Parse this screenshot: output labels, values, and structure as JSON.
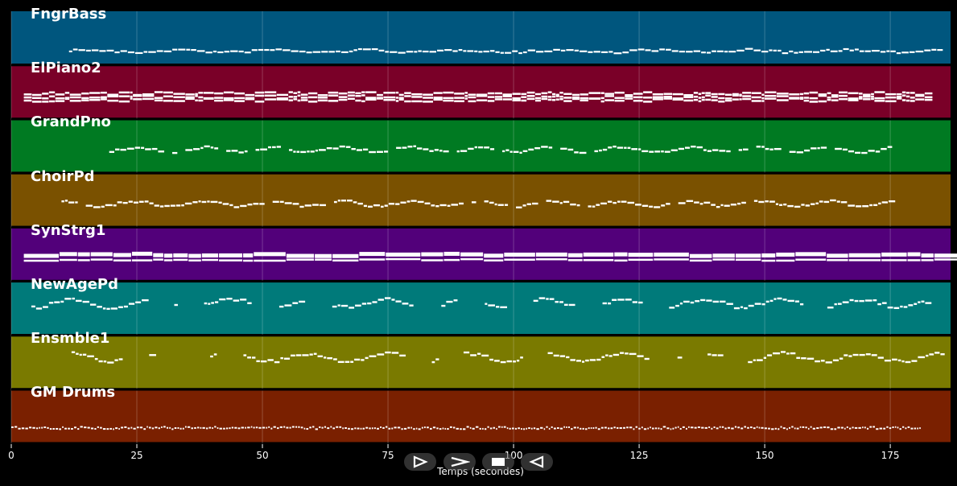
{
  "chart_data": {
    "type": "piano-roll",
    "xlabel": "Temps (secondes)",
    "xlim": [
      0,
      187
    ],
    "xticks": [
      0,
      25,
      50,
      75,
      100,
      125,
      150,
      175
    ],
    "grid": true,
    "tracks": [
      {
        "name": "FngrBass",
        "color": "#00567e",
        "start": 11.5,
        "end": 185,
        "density": "continuous"
      },
      {
        "name": "ElPiano2",
        "color": "#7a0028",
        "start": 2.5,
        "end": 182,
        "density": "dense-chords"
      },
      {
        "name": "GrandPno",
        "color": "#007a22",
        "start": 19.5,
        "end": 175.5,
        "density": "melody"
      },
      {
        "name": "ChoirPd",
        "color": "#7a5100",
        "start": 10,
        "end": 175.5,
        "density": "melody"
      },
      {
        "name": "SynStrg1",
        "color": "#52007a",
        "start": 2.5,
        "end": 185,
        "density": "sustained-blocks"
      },
      {
        "name": "NewAgePd",
        "color": "#007a7a",
        "start": 4,
        "end": 182,
        "density": "phrases"
      },
      {
        "name": "Ensmble1",
        "color": "#7a7a00",
        "start": 12,
        "end": 185,
        "density": "phrases"
      },
      {
        "name": "GM Drums",
        "color": "#7a2000",
        "start": 0,
        "end": 181,
        "density": "percussion"
      }
    ]
  },
  "controls": [
    {
      "name": "play-icon"
    },
    {
      "name": "fast-forward-icon"
    },
    {
      "name": "stop-icon"
    },
    {
      "name": "rewind-icon"
    }
  ]
}
